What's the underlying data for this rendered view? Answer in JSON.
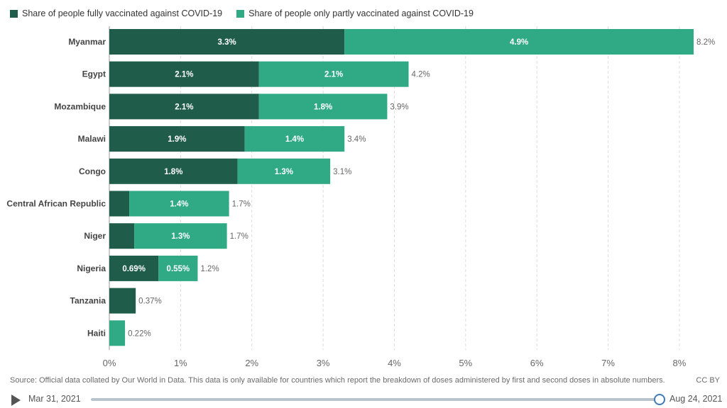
{
  "legend": {
    "full_label": "Share of people fully vaccinated against COVID-19",
    "partial_label": "Share of people only partly vaccinated against COVID-19",
    "full_color": "#1f5c4a",
    "partial_color": "#2faa84"
  },
  "chart_data": {
    "type": "bar",
    "orientation": "horizontal",
    "stacked": true,
    "categories": [
      "Myanmar",
      "Egypt",
      "Mozambique",
      "Malawi",
      "Congo",
      "Central African Republic",
      "Niger",
      "Nigeria",
      "Tanzania",
      "Haiti"
    ],
    "series": [
      {
        "name": "Share of people fully vaccinated against COVID-19",
        "values": [
          3.3,
          2.1,
          2.1,
          1.9,
          1.8,
          0.28,
          0.35,
          0.69,
          0.37,
          0
        ],
        "labels": [
          "3.3%",
          "2.1%",
          "2.1%",
          "1.9%",
          "1.8%",
          "",
          "",
          "0.69%",
          "",
          ""
        ]
      },
      {
        "name": "Share of people only partly vaccinated against COVID-19",
        "values": [
          4.9,
          2.1,
          1.8,
          1.4,
          1.3,
          1.4,
          1.3,
          0.55,
          0,
          0.22
        ],
        "labels": [
          "4.9%",
          "2.1%",
          "1.8%",
          "1.4%",
          "1.3%",
          "1.4%",
          "1.3%",
          "0.55%",
          "",
          ""
        ]
      }
    ],
    "totals": [
      "8.2%",
      "4.2%",
      "3.9%",
      "3.4%",
      "3.1%",
      "1.7%",
      "1.7%",
      "1.2%",
      "0.37%",
      "0.22%"
    ],
    "xlim": [
      0,
      8.2
    ],
    "xticks": [
      0,
      1,
      2,
      3,
      4,
      5,
      6,
      7,
      8
    ],
    "xtick_labels": [
      "0%",
      "1%",
      "2%",
      "3%",
      "4%",
      "5%",
      "6%",
      "7%",
      "8%"
    ],
    "grid": true
  },
  "footer": {
    "source": "Source: Official data collated by Our World in Data. This data is only available for countries which report the breakdown of doses administered by first and second doses in absolute numbers.",
    "license": "CC BY"
  },
  "timeline": {
    "start_date": "Mar 31, 2021",
    "end_date": "Aug 24, 2021",
    "position": 1.0
  }
}
